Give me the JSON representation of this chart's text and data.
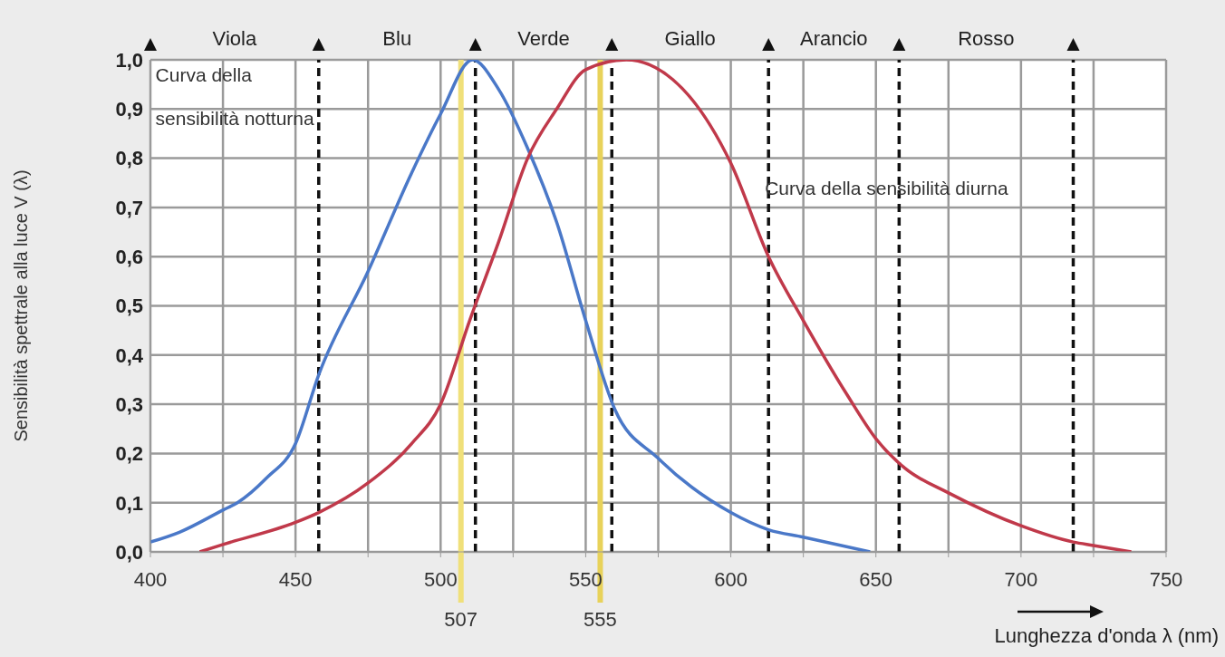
{
  "chart_data": {
    "type": "line",
    "xlabel": "Lunghezza d'onda λ (nm)",
    "ylabel": "Sensibilità spettrale alla luce V (λ)",
    "xlim": [
      400,
      750
    ],
    "xticks": [
      400,
      {
        "value": 425,
        "label": null
      },
      450,
      {
        "value": 475,
        "label": null
      },
      500,
      {
        "value": 525,
        "label": null
      },
      550,
      {
        "value": 575,
        "label": null
      },
      600,
      {
        "value": 625,
        "label": null
      },
      650,
      {
        "value": 675,
        "label": null
      },
      700,
      {
        "value": 725,
        "label": null
      },
      750
    ],
    "ylim": [
      0,
      1
    ],
    "yticks": [
      {
        "value": 0,
        "label": "0,0"
      },
      {
        "value": 0.1,
        "label": "0,1"
      },
      {
        "value": 0.2,
        "label": "0,2"
      },
      {
        "value": 0.3,
        "label": "0,3"
      },
      {
        "value": 0.4,
        "label": "0,4"
      },
      {
        "value": 0.5,
        "label": "0,5"
      },
      {
        "value": 0.6,
        "label": "0,6"
      },
      {
        "value": 0.7,
        "label": "0,7"
      },
      {
        "value": 0.8,
        "label": "0,8"
      },
      {
        "value": 0.9,
        "label": "0,9"
      },
      {
        "value": 1,
        "label": "1,0"
      }
    ],
    "grid": true,
    "legend": false,
    "marker": "none",
    "line_style": "solid",
    "series": [
      {
        "color": "#4a78c8",
        "x": [
          400,
          410,
          425,
          430,
          440,
          450,
          458,
          475,
          490,
          500,
          511,
          520,
          530,
          540,
          550,
          560,
          575,
          600,
          613,
          625,
          648
        ],
        "values": [
          0.02,
          0.04,
          0.085,
          0.1,
          0.15,
          0.22,
          0.36,
          0.57,
          0.77,
          0.89,
          1.0,
          0.94,
          0.82,
          0.67,
          0.47,
          0.29,
          0.19,
          0.08,
          0.045,
          0.03,
          0.0
        ]
      },
      {
        "color": "#c0394a",
        "x": [
          417,
          425,
          450,
          458,
          475,
          490,
          500,
          510,
          520,
          530,
          540,
          550,
          564,
          580,
          600,
          613,
          625,
          640,
          650,
          660,
          675,
          700,
          718,
          725,
          738
        ],
        "values": [
          0.0,
          0.015,
          0.06,
          0.08,
          0.14,
          0.22,
          0.3,
          0.47,
          0.63,
          0.8,
          0.9,
          0.98,
          1.0,
          0.96,
          0.79,
          0.6,
          0.47,
          0.32,
          0.23,
          0.17,
          0.12,
          0.053,
          0.02,
          0.013,
          0.0
        ]
      }
    ],
    "ref_lines": [
      {
        "axis": "x",
        "value": 458,
        "label": null,
        "color": "#111111",
        "line_style": "dashed"
      },
      {
        "axis": "x",
        "value": 512,
        "label": null,
        "color": "#111111",
        "line_style": "dashed"
      },
      {
        "axis": "x",
        "value": 559,
        "label": null,
        "color": "#111111",
        "line_style": "dashed"
      },
      {
        "axis": "x",
        "value": 613,
        "label": null,
        "color": "#111111",
        "line_style": "dashed"
      },
      {
        "axis": "x",
        "value": 658,
        "label": null,
        "color": "#111111",
        "line_style": "dashed"
      },
      {
        "axis": "x",
        "value": 718,
        "label": null,
        "color": "#111111",
        "line_style": "dashed"
      },
      {
        "axis": "x",
        "value": 507,
        "label": "507",
        "color": "#f0e07a",
        "line_style": "solid"
      },
      {
        "axis": "x",
        "value": 555,
        "label": "555",
        "color": "#e8d25a",
        "line_style": "solid"
      }
    ],
    "annotations": [
      "Curva della sensibilità notturna",
      "Curva della sensibilità diurna",
      "Viola",
      "Blu",
      "Verde",
      "Giallo",
      "Arancio",
      "Rosso"
    ]
  }
}
